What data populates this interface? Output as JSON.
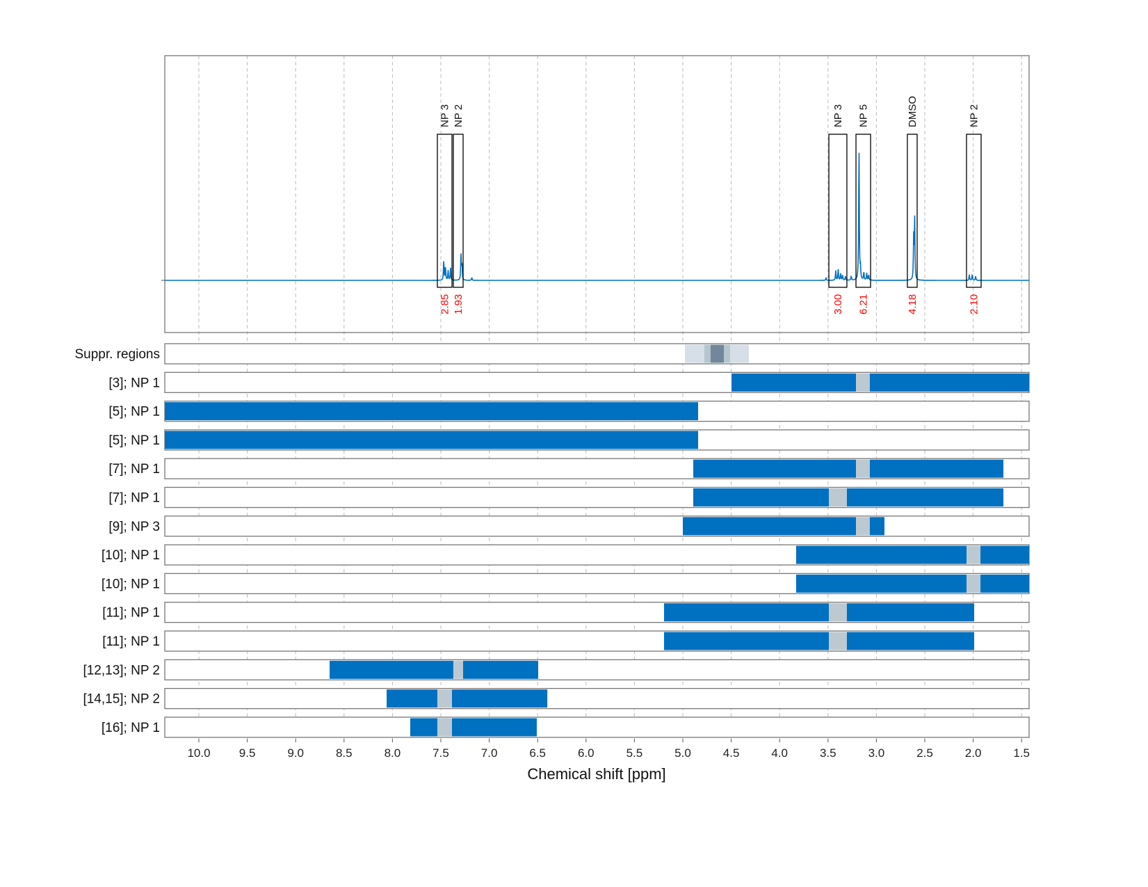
{
  "chart_data": {
    "type": "line",
    "xlabel": "Chemical shift [ppm]",
    "xlim": [
      10.35,
      1.42
    ],
    "x_reversed": true,
    "x_ticks": [
      "10.0",
      "9.5",
      "9.0",
      "8.5",
      "8.0",
      "7.5",
      "7.0",
      "6.5",
      "6.0",
      "5.5",
      "5.0",
      "4.5",
      "4.0",
      "3.5",
      "3.0",
      "2.5",
      "2.0",
      "1.5"
    ],
    "grid": "vertical dashed",
    "spectrum_color": "#0070C0",
    "spectrum_peaks_relative_intensity": [
      [
        7.47,
        15
      ],
      [
        7.452,
        10
      ],
      [
        7.425,
        7
      ],
      [
        7.4,
        9
      ],
      [
        7.292,
        18
      ],
      [
        7.282,
        12
      ],
      [
        7.18,
        2
      ],
      [
        3.52,
        2
      ],
      [
        3.42,
        7
      ],
      [
        3.395,
        8
      ],
      [
        3.37,
        5
      ],
      [
        3.35,
        4
      ],
      [
        3.32,
        3
      ],
      [
        3.26,
        3
      ],
      [
        3.18,
        100
      ],
      [
        3.165,
        8
      ],
      [
        3.13,
        6
      ],
      [
        3.1,
        5
      ],
      [
        3.08,
        4
      ],
      [
        2.605,
        46
      ],
      [
        2.615,
        30
      ],
      [
        2.04,
        4
      ],
      [
        2.01,
        4
      ],
      [
        1.975,
        3
      ]
    ],
    "annotations": [
      {
        "label": "NP 3",
        "from": 7.536,
        "to": 7.385,
        "integral": "2.85"
      },
      {
        "label": "NP 2",
        "from": 7.371,
        "to": 7.27,
        "integral": "1.93"
      },
      {
        "label": "NP 3",
        "from": 3.491,
        "to": 3.305,
        "integral": "3.00"
      },
      {
        "label": "NP 5",
        "from": 3.211,
        "to": 3.06,
        "integral": "6.21"
      },
      {
        "label": "DMSO",
        "from": 2.68,
        "to": 2.579,
        "integral": "4.18"
      },
      {
        "label": "NP 2",
        "from": 2.069,
        "to": 1.918,
        "integral": "2.10"
      }
    ],
    "suppression": {
      "label": "Suppr. regions",
      "colors": [
        "#D6DFE7",
        "#B5C6CF",
        "#72889A"
      ],
      "segments": [
        [
          4.978,
          4.318,
          0
        ],
        [
          4.777,
          4.511,
          1
        ],
        [
          4.713,
          4.576,
          2
        ]
      ]
    },
    "range_colors": {
      "range": "#0070C0",
      "gap": "#BCC9D1"
    },
    "rows": [
      {
        "label": "[3]; NP 1",
        "segments": [
          [
            4.497,
            3.211,
            "range"
          ],
          [
            3.211,
            3.068,
            "gap"
          ],
          [
            3.068,
            1.42,
            "range"
          ]
        ]
      },
      {
        "label": "[5]; NP 1",
        "segments": [
          [
            10.35,
            4.842,
            "range"
          ]
        ]
      },
      {
        "label": "[5]; NP 1",
        "segments": [
          [
            10.35,
            4.842,
            "range"
          ]
        ]
      },
      {
        "label": "[7]; NP 1",
        "segments": [
          [
            4.892,
            3.211,
            "range"
          ],
          [
            3.211,
            3.068,
            "gap"
          ],
          [
            3.068,
            1.688,
            "range"
          ]
        ]
      },
      {
        "label": "[7]; NP 1",
        "segments": [
          [
            4.892,
            3.491,
            "range"
          ],
          [
            3.491,
            3.305,
            "gap"
          ],
          [
            3.305,
            1.688,
            "range"
          ]
        ]
      },
      {
        "label": "[9]; NP 3",
        "segments": [
          [
            5.0,
            3.211,
            "range"
          ],
          [
            3.211,
            3.068,
            "gap"
          ],
          [
            3.068,
            2.917,
            "range"
          ]
        ]
      },
      {
        "label": "[10]; NP 1",
        "segments": [
          [
            3.829,
            2.069,
            "range"
          ],
          [
            2.069,
            1.925,
            "gap"
          ],
          [
            1.925,
            1.42,
            "range"
          ]
        ]
      },
      {
        "label": "[10]; NP 1",
        "segments": [
          [
            3.829,
            2.069,
            "range"
          ],
          [
            2.069,
            1.925,
            "gap"
          ],
          [
            1.925,
            1.42,
            "range"
          ]
        ]
      },
      {
        "label": "[11]; NP 1",
        "segments": [
          [
            5.194,
            3.491,
            "range"
          ],
          [
            3.491,
            3.305,
            "gap"
          ],
          [
            3.305,
            1.99,
            "range"
          ]
        ]
      },
      {
        "label": "[11]; NP 1",
        "segments": [
          [
            5.194,
            3.491,
            "range"
          ],
          [
            3.491,
            3.305,
            "gap"
          ],
          [
            3.305,
            1.99,
            "range"
          ]
        ]
      },
      {
        "label": "[12,13]; NP 2",
        "segments": [
          [
            8.649,
            7.371,
            "range"
          ],
          [
            7.371,
            7.27,
            "gap"
          ],
          [
            7.27,
            6.494,
            "range"
          ]
        ]
      },
      {
        "label": "[14,15]; NP 2",
        "segments": [
          [
            8.06,
            7.536,
            "range"
          ],
          [
            7.536,
            7.385,
            "gap"
          ],
          [
            7.385,
            6.4,
            "range"
          ]
        ]
      },
      {
        "label": "[16]; NP 1",
        "segments": [
          [
            7.816,
            7.536,
            "range"
          ],
          [
            7.536,
            7.385,
            "gap"
          ],
          [
            7.385,
            6.509,
            "range"
          ]
        ]
      }
    ]
  }
}
